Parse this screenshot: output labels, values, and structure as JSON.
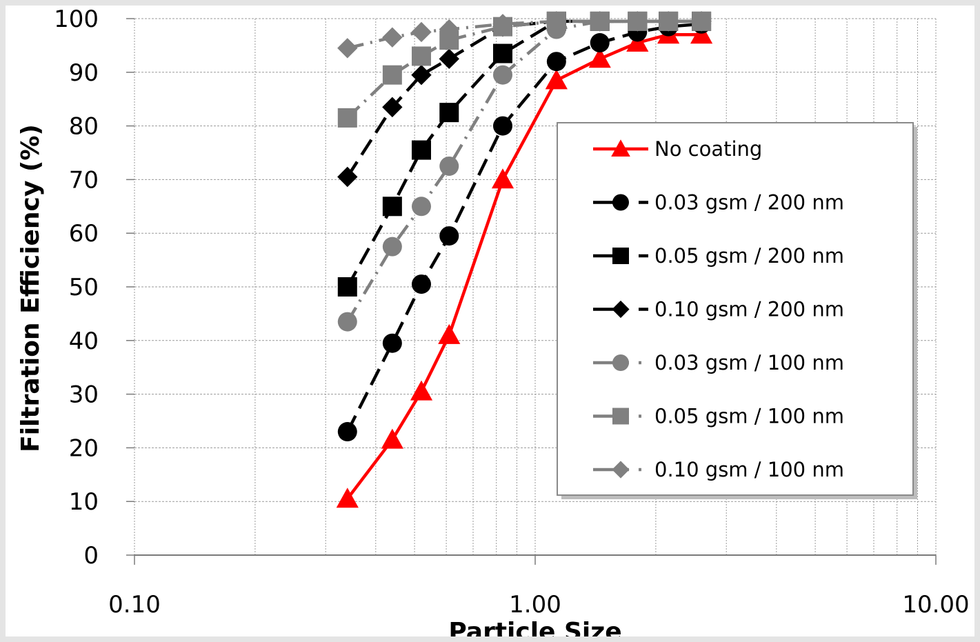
{
  "chart_data": {
    "type": "line",
    "title": "",
    "xlabel": "Particle Size",
    "ylabel": "Filtration Efficiency (%)",
    "xscale": "log",
    "xlim": [
      0.1,
      10.0
    ],
    "ylim": [
      0,
      100
    ],
    "x_ticks": [
      0.1,
      1.0,
      10.0
    ],
    "x_tick_labels": [
      "0.10",
      "1.00",
      "10.00"
    ],
    "y_ticks": [
      0,
      10,
      20,
      30,
      40,
      50,
      60,
      70,
      80,
      90,
      100
    ],
    "y_tick_labels": [
      "0",
      "10",
      "20",
      "30",
      "40",
      "50",
      "60",
      "70",
      "80",
      "90",
      "100"
    ],
    "grid": true,
    "legend_position": "right",
    "series": [
      {
        "name": "No coating",
        "color": "#ff0000",
        "line_style": "solid",
        "marker": "triangle",
        "x": [
          0.34,
          0.44,
          0.52,
          0.61,
          0.83,
          1.13,
          1.45,
          1.8,
          2.15,
          2.6
        ],
        "y": [
          10.5,
          21.5,
          30.5,
          41.0,
          70.0,
          88.5,
          92.5,
          95.5,
          97.0,
          97.0
        ]
      },
      {
        "name": "0.03 gsm / 200 nm",
        "color": "#000000",
        "line_style": "dashed",
        "marker": "circle",
        "x": [
          0.34,
          0.44,
          0.52,
          0.61,
          0.83,
          1.13,
          1.45,
          1.8,
          2.15,
          2.6
        ],
        "y": [
          23.0,
          39.5,
          50.5,
          59.5,
          80.0,
          92.0,
          95.5,
          97.5,
          98.5,
          99.0
        ]
      },
      {
        "name": "0.05 gsm / 200 nm",
        "color": "#000000",
        "line_style": "dashed",
        "marker": "square",
        "x": [
          0.34,
          0.44,
          0.52,
          0.61,
          0.83,
          1.13,
          1.45,
          1.8,
          2.15,
          2.6
        ],
        "y": [
          50.0,
          65.0,
          75.5,
          82.5,
          93.5,
          99.5,
          99.5,
          99.5,
          99.5,
          99.5
        ]
      },
      {
        "name": "0.10 gsm / 200 nm",
        "color": "#000000",
        "line_style": "dashed",
        "marker": "diamond",
        "x": [
          0.34,
          0.44,
          0.52,
          0.61,
          0.83,
          1.13,
          1.45,
          1.8,
          2.15,
          2.6
        ],
        "y": [
          70.5,
          83.5,
          89.5,
          92.5,
          98.5,
          99.5,
          99.5,
          99.5,
          99.5,
          99.5
        ]
      },
      {
        "name": "0.03 gsm / 100 nm",
        "color": "#808080",
        "line_style": "dash-dot",
        "marker": "circle",
        "x": [
          0.34,
          0.44,
          0.52,
          0.61,
          0.83,
          1.13,
          1.45,
          1.8,
          2.15,
          2.6
        ],
        "y": [
          43.5,
          57.5,
          65.0,
          72.5,
          89.5,
          98.0,
          99.5,
          99.5,
          99.5,
          99.5
        ]
      },
      {
        "name": "0.05 gsm / 100 nm",
        "color": "#808080",
        "line_style": "dash-dot",
        "marker": "square",
        "x": [
          0.34,
          0.44,
          0.52,
          0.61,
          0.83,
          1.13,
          1.45,
          1.8,
          2.15,
          2.6
        ],
        "y": [
          81.5,
          89.5,
          93.0,
          96.0,
          98.5,
          99.5,
          99.5,
          99.5,
          99.5,
          99.5
        ]
      },
      {
        "name": "0.10 gsm / 100 nm",
        "color": "#808080",
        "line_style": "dash-dot",
        "marker": "diamond",
        "x": [
          0.34,
          0.44,
          0.52,
          0.61,
          0.83,
          1.13,
          1.45,
          1.8,
          2.15,
          2.6
        ],
        "y": [
          94.5,
          96.5,
          97.5,
          98.0,
          99.0,
          99.5,
          99.5,
          99.5,
          99.5,
          99.5
        ]
      }
    ]
  }
}
